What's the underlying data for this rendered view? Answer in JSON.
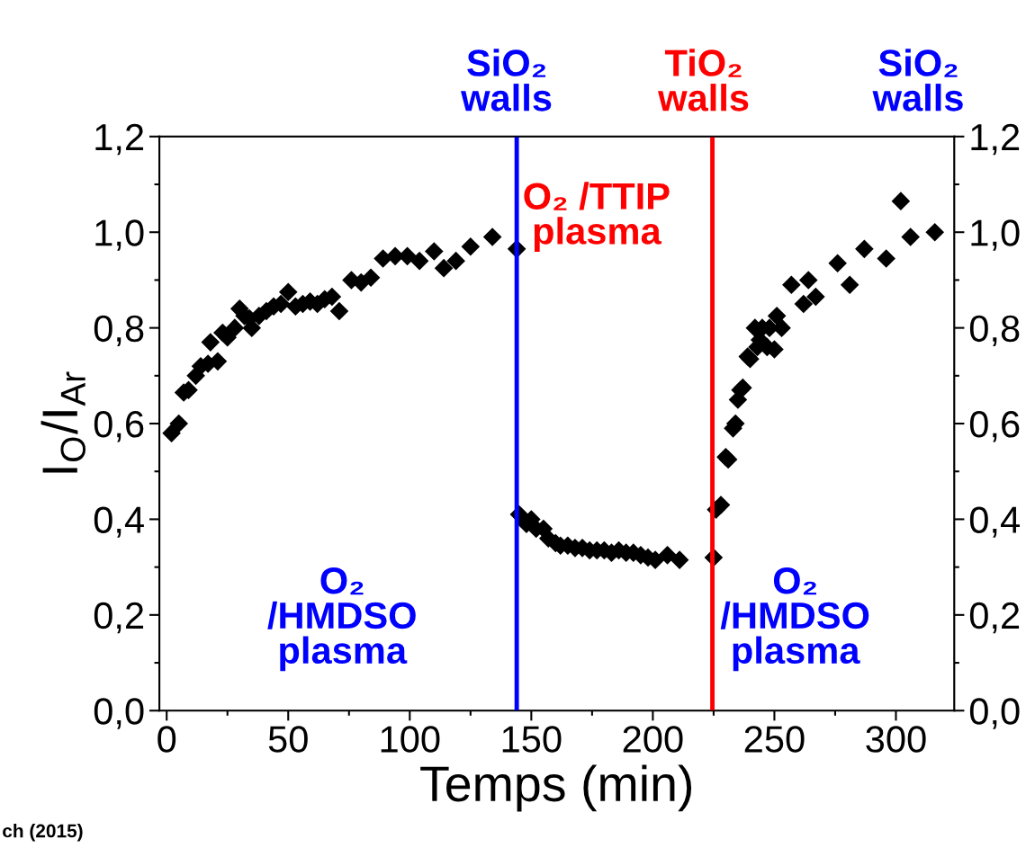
{
  "chart_data": {
    "type": "scatter",
    "xlabel": "Temps (min)",
    "ylabel": "I$_{O}$/I$_{Ar}$",
    "x": [
      2,
      5,
      7,
      9,
      12,
      14,
      17,
      18,
      21,
      23,
      25,
      28,
      30,
      32,
      34,
      35,
      38,
      41,
      44,
      47,
      50,
      53,
      56,
      59,
      62,
      65,
      68,
      71,
      76,
      80,
      84,
      89,
      94,
      99,
      104,
      110,
      114,
      119,
      125,
      134,
      144,
      145,
      148,
      150,
      152,
      155,
      157,
      160,
      162,
      165,
      168,
      171,
      174,
      177,
      180,
      183,
      186,
      189,
      192,
      195,
      198,
      201,
      206,
      211,
      225,
      226,
      228,
      230,
      231,
      233,
      234,
      235,
      236,
      237,
      239,
      240,
      242,
      243,
      244,
      245,
      247,
      248,
      250,
      251,
      253,
      257,
      262,
      264,
      267,
      276,
      281,
      287,
      296,
      302,
      306,
      316
    ],
    "series": [
      {
        "color": "#000000",
        "values": [
          0.58,
          0.6,
          0.665,
          0.67,
          0.7,
          0.72,
          0.725,
          0.77,
          0.73,
          0.79,
          0.78,
          0.8,
          0.84,
          0.825,
          0.82,
          0.8,
          0.825,
          0.835,
          0.845,
          0.85,
          0.875,
          0.845,
          0.85,
          0.855,
          0.85,
          0.86,
          0.865,
          0.835,
          0.9,
          0.895,
          0.905,
          0.945,
          0.95,
          0.95,
          0.94,
          0.96,
          0.925,
          0.94,
          0.97,
          0.99,
          0.965,
          0.41,
          0.39,
          0.4,
          0.38,
          0.38,
          0.36,
          0.35,
          0.345,
          0.345,
          0.34,
          0.34,
          0.335,
          0.335,
          0.335,
          0.33,
          0.335,
          0.33,
          0.33,
          0.325,
          0.32,
          0.315,
          0.325,
          0.315,
          0.32,
          0.42,
          0.43,
          0.53,
          0.525,
          0.59,
          0.6,
          0.65,
          0.67,
          0.675,
          0.74,
          0.735,
          0.8,
          0.76,
          0.775,
          0.8,
          0.76,
          0.8,
          0.755,
          0.825,
          0.8,
          0.89,
          0.85,
          0.9,
          0.865,
          0.935,
          0.89,
          0.965,
          0.945,
          1.065,
          0.99,
          1.0
        ]
      }
    ],
    "marker": "diamond",
    "xlim": [
      -3,
      324
    ],
    "xticks": [
      0,
      50,
      100,
      150,
      200,
      250,
      300
    ],
    "ylim": [
      0,
      1.2
    ],
    "yticks": [
      {
        "value": 0,
        "label": "0,0"
      },
      {
        "value": 0.2,
        "label": "0,2"
      },
      {
        "value": 0.4,
        "label": "0,4"
      },
      {
        "value": 0.6,
        "label": "0,6"
      },
      {
        "value": 0.8,
        "label": "0,8"
      },
      {
        "value": 1.0,
        "label": "1,0"
      },
      {
        "value": 1.2,
        "label": "1,2"
      }
    ],
    "y2lim": [
      0,
      1.2
    ],
    "y2ticks": [
      {
        "value": 0,
        "label": "0,0"
      },
      {
        "value": 0.2,
        "label": "0,2"
      },
      {
        "value": 0.4,
        "label": "0,4"
      },
      {
        "value": 0.6,
        "label": "0,6"
      },
      {
        "value": 0.8,
        "label": "0,8"
      },
      {
        "value": 1.0,
        "label": "1,0"
      },
      {
        "value": 1.2,
        "label": "1,2"
      }
    ],
    "ref_lines": [
      {
        "axis": "x",
        "value": 144,
        "color": "#0000ff"
      },
      {
        "axis": "x",
        "value": 224.5,
        "color": "#ff0000"
      }
    ],
    "annotations": [
      "SiO₂\nwalls",
      "TiO₂\nwalls",
      "SiO₂\nwalls",
      "O₂ /TTIP\nplasma",
      "O₂\n/HMDSO\nplasma",
      "O₂\n/HMDSO\nplasma",
      "ch (2015)"
    ],
    "grid": false
  }
}
